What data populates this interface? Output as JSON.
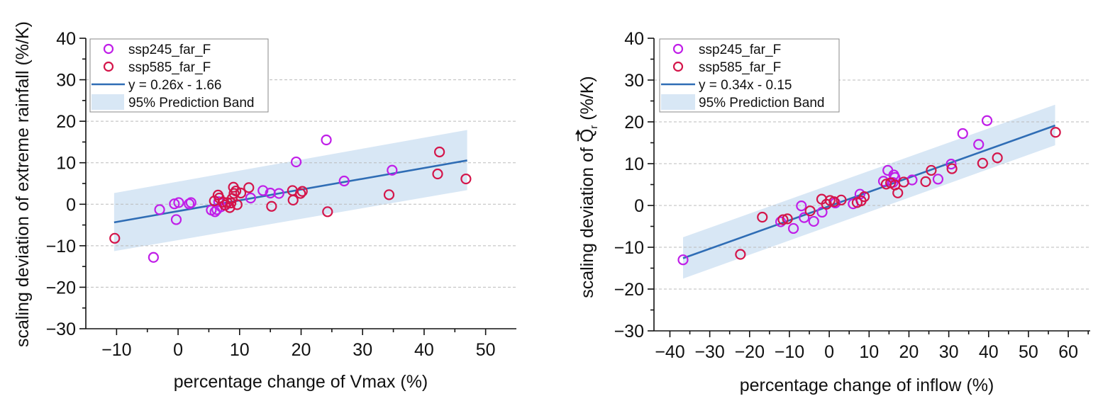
{
  "colors": {
    "ssp245": "#c01ee8",
    "ssp585": "#d4154a",
    "fit_line": "#2f6db5",
    "band": "#d8e7f5",
    "grid": "#bbbbbb"
  },
  "chart_data": [
    {
      "type": "scatter",
      "title": "",
      "xlabel": "percentage change of Vmax (%)",
      "ylabel": "scaling deviation of extreme rainfall (%/K)",
      "xlim": [
        -15,
        55
      ],
      "ylim": [
        -30,
        40
      ],
      "xticks": [
        -10,
        0,
        10,
        20,
        30,
        40,
        50
      ],
      "xtick_labels": [
        "−10",
        "0",
        "10",
        "20",
        "30",
        "40",
        "50"
      ],
      "yticks": [
        -30,
        -20,
        -10,
        0,
        10,
        20,
        30,
        40
      ],
      "ytick_labels": [
        "−30",
        "−20",
        "−10",
        "0",
        "10",
        "20",
        "30",
        "40"
      ],
      "grid": "horizontal dashed",
      "legend_position": "top-left",
      "legend": [
        "ssp245_far_F",
        "ssp585_far_F",
        "y = 0.26x - 1.66",
        "95% Prediction Band"
      ],
      "fit": {
        "label": "y = 0.26x - 1.66",
        "slope": 0.26,
        "intercept": -1.66,
        "x_range": [
          -10.4,
          47
        ]
      },
      "prediction_band": {
        "x": [
          -10.4,
          47
        ],
        "upper": [
          2.7,
          17.9
        ],
        "lower": [
          -11.3,
          3.4
        ]
      },
      "series": [
        {
          "name": "ssp245_far_F",
          "points": [
            [
              -3,
              -1.3
            ],
            [
              -4,
              -12.8
            ],
            [
              -0.6,
              0.1
            ],
            [
              -0.3,
              -3.7
            ],
            [
              0.1,
              0.4
            ],
            [
              1.8,
              0.1
            ],
            [
              2.1,
              0.4
            ],
            [
              5.4,
              -1.4
            ],
            [
              6.0,
              -1.8
            ],
            [
              6.3,
              -1.3
            ],
            [
              6.6,
              0.6
            ],
            [
              7.0,
              -0.6
            ],
            [
              7.7,
              -0.2
            ],
            [
              11.8,
              1.5
            ],
            [
              13.8,
              3.3
            ],
            [
              15.0,
              2.7
            ],
            [
              16.4,
              2.6
            ],
            [
              19.2,
              10.2
            ],
            [
              24.1,
              15.5
            ],
            [
              27.0,
              5.6
            ],
            [
              34.8,
              8.2
            ]
          ]
        },
        {
          "name": "ssp585_far_F",
          "points": [
            [
              -10.3,
              -8.2
            ],
            [
              5.9,
              0.8
            ],
            [
              6.5,
              2.2
            ],
            [
              6.7,
              1.5
            ],
            [
              7.3,
              0.5
            ],
            [
              7.6,
              -0.2
            ],
            [
              8.0,
              0.4
            ],
            [
              8.4,
              -0.8
            ],
            [
              8.6,
              0.3
            ],
            [
              8.8,
              1.4
            ],
            [
              9.0,
              4.1
            ],
            [
              9.1,
              2.6
            ],
            [
              9.4,
              3.2
            ],
            [
              9.6,
              -0.1
            ],
            [
              10.2,
              2.7
            ],
            [
              11.5,
              4.0
            ],
            [
              15.2,
              -0.5
            ],
            [
              18.6,
              3.3
            ],
            [
              18.7,
              1.0
            ],
            [
              19.9,
              2.6
            ],
            [
              20.2,
              3.1
            ],
            [
              24.3,
              -1.8
            ],
            [
              34.3,
              2.3
            ],
            [
              42.2,
              7.3
            ],
            [
              42.5,
              12.6
            ],
            [
              46.8,
              6.1
            ]
          ]
        }
      ]
    },
    {
      "type": "scatter",
      "title": "",
      "xlabel": "percentage change of inflow (%)",
      "ylabel_parts": {
        "before": "scaling deviation of ",
        "symbol": "Q",
        "subscript": "r",
        "vector_arrow": true,
        "after": " (%/K)"
      },
      "xlim": [
        -44,
        65.5
      ],
      "ylim": [
        -30,
        40
      ],
      "xticks": [
        -40,
        -30,
        -20,
        -10,
        0,
        10,
        20,
        30,
        40,
        50,
        60
      ],
      "xtick_labels": [
        "−40",
        "−30",
        "−20",
        "−10",
        "0",
        "10",
        "20",
        "30",
        "40",
        "50",
        "60"
      ],
      "yticks": [
        -30,
        -20,
        -10,
        0,
        10,
        20,
        30,
        40
      ],
      "ytick_labels": [
        "−30",
        "−20",
        "−10",
        "0",
        "10",
        "20",
        "30",
        "40"
      ],
      "grid": "horizontal dashed",
      "legend_position": "top-left",
      "legend": [
        "ssp245_far_F",
        "ssp585_far_F",
        "y = 0.34x - 0.15",
        "95% Prediction Band"
      ],
      "fit": {
        "label": "y = 0.34x - 0.15",
        "slope": 0.34,
        "intercept": -0.15,
        "x_range": [
          -36.7,
          56.7
        ]
      },
      "prediction_band": {
        "x": [
          -36.7,
          56.7
        ],
        "upper": [
          -7.6,
          24.1
        ],
        "lower": [
          -17.5,
          14.4
        ]
      },
      "series": [
        {
          "name": "ssp245_far_F",
          "points": [
            [
              -36.7,
              -13.0
            ],
            [
              -12.2,
              -3.9
            ],
            [
              -9.0,
              -5.5
            ],
            [
              -7.0,
              -0.1
            ],
            [
              -6.3,
              -2.9
            ],
            [
              -3.9,
              -3.8
            ],
            [
              -1.8,
              -1.6
            ],
            [
              1.5,
              0.6
            ],
            [
              6.0,
              0.4
            ],
            [
              7.7,
              2.7
            ],
            [
              13.6,
              5.8
            ],
            [
              14.7,
              8.4
            ],
            [
              16.0,
              5.5
            ],
            [
              16.2,
              7.3
            ],
            [
              16.5,
              6.7
            ],
            [
              20.8,
              6.1
            ],
            [
              27.3,
              6.3
            ],
            [
              30.6,
              9.9
            ],
            [
              33.5,
              17.2
            ],
            [
              37.5,
              14.6
            ],
            [
              39.6,
              20.3
            ]
          ]
        },
        {
          "name": "ssp585_far_F",
          "points": [
            [
              -22.3,
              -11.7
            ],
            [
              -16.8,
              -2.8
            ],
            [
              -11.6,
              -3.4
            ],
            [
              -10.5,
              -3.2
            ],
            [
              -4.8,
              -1.3
            ],
            [
              -1.9,
              1.5
            ],
            [
              -0.7,
              0.3
            ],
            [
              0.2,
              1.2
            ],
            [
              1.2,
              0.9
            ],
            [
              3.0,
              1.3
            ],
            [
              7.0,
              0.7
            ],
            [
              8.0,
              1.1
            ],
            [
              8.8,
              2.1
            ],
            [
              14.3,
              5.1
            ],
            [
              15.4,
              5.4
            ],
            [
              16.5,
              4.9
            ],
            [
              17.2,
              3.0
            ],
            [
              18.7,
              5.6
            ],
            [
              24.2,
              5.7
            ],
            [
              25.6,
              8.4
            ],
            [
              30.8,
              8.8
            ],
            [
              38.5,
              10.1
            ],
            [
              42.2,
              11.4
            ],
            [
              56.8,
              17.5
            ]
          ]
        }
      ]
    }
  ]
}
